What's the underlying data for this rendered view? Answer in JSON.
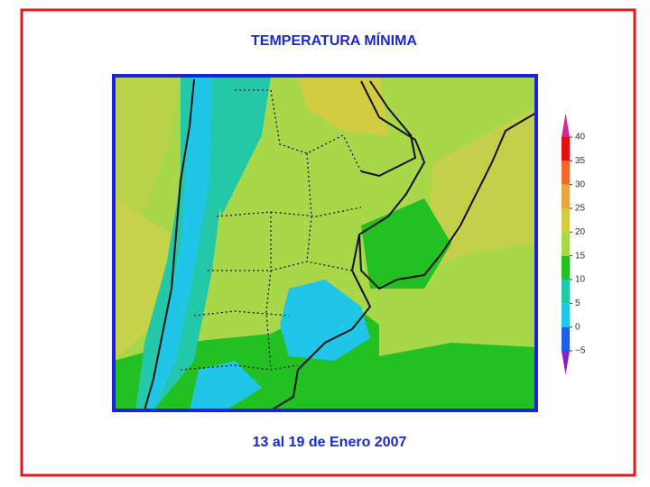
{
  "title": "TEMPERATURA MÍNIMA",
  "subtitle": "13 al 19 de Enero  2007",
  "colorbar": {
    "ticks": [
      {
        "value": -5,
        "label": "−5"
      },
      0,
      5,
      10,
      15,
      20,
      25,
      30,
      35,
      40
    ],
    "colors": [
      "#8a1fc8",
      "#1f5fe8",
      "#1fc6e8",
      "#22c8a8",
      "#22c022",
      "#a8d84a",
      "#d2cc42",
      "#e6a640",
      "#ee6a2a",
      "#e01010",
      "#e0209a"
    ]
  }
}
